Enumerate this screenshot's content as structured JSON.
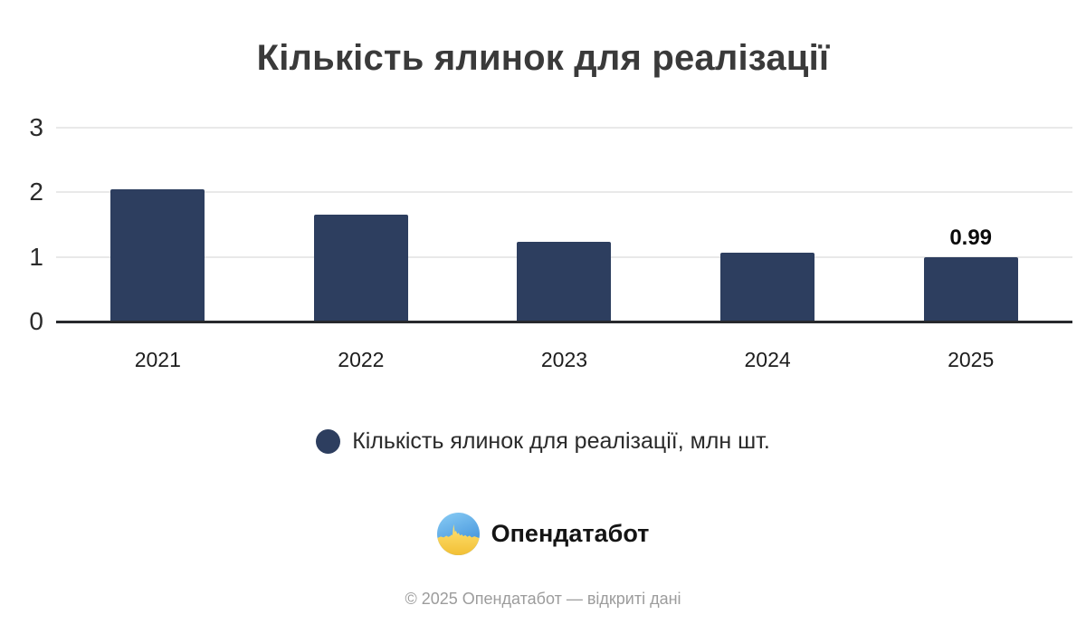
{
  "chart_data": {
    "type": "bar",
    "title": "Кількість ялинок для реалізації",
    "categories": [
      "2021",
      "2022",
      "2023",
      "2024",
      "2025"
    ],
    "values": [
      2.05,
      1.65,
      1.24,
      1.07,
      0.99
    ],
    "point_labels": [
      "",
      "",
      "",
      "",
      "0.99"
    ],
    "xlabel": "",
    "ylabel": "",
    "ylim": [
      0,
      3
    ],
    "yticks": [
      0,
      1,
      2,
      3
    ],
    "grid": true,
    "legend_position": "bottom",
    "bar_color": "#2d3e5f",
    "gridline_color": "#e9e9e9",
    "axis_color": "#27292d",
    "legend": {
      "label": "Кількість ялинок для реалізації, млн шт.",
      "swatch_color": "#2d3e5f"
    }
  },
  "branding": {
    "logo_icon": "opendatabot-circle-skyline",
    "logo_text": "Опендатабот",
    "logo_blue": "#4a9ee2",
    "logo_yellow": "#ffd952"
  },
  "footer": {
    "text": "© 2025 Опендатабот — відкриті дані"
  }
}
